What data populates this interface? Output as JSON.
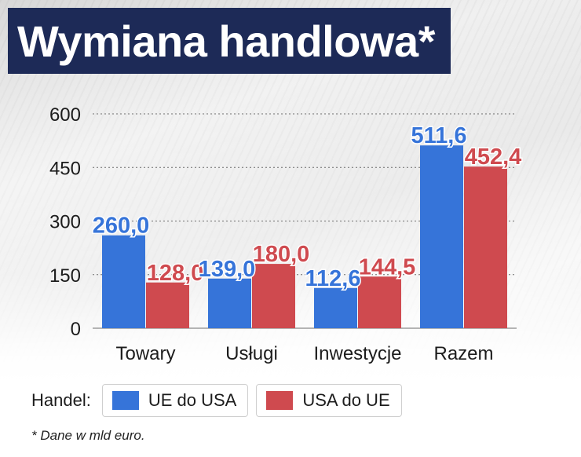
{
  "title": "Wymiana handlowa*",
  "footnote": "* Dane w mld euro.",
  "legend": {
    "title": "Handel:",
    "items": [
      {
        "label": "UE do USA",
        "color": "#3674d9"
      },
      {
        "label": "USA do UE",
        "color": "#cf4a4f"
      }
    ]
  },
  "chart_data": {
    "type": "bar",
    "categories": [
      "Towary",
      "Usługi",
      "Inwestycje",
      "Razem"
    ],
    "series": [
      {
        "name": "UE do USA",
        "color": "#3674d9",
        "values": [
          260.0,
          139.0,
          112.6,
          511.6
        ],
        "labels": [
          "260,0",
          "139,0",
          "112,6",
          "511,6"
        ]
      },
      {
        "name": "USA do UE",
        "color": "#cf4a4f",
        "values": [
          128.0,
          180.0,
          144.5,
          452.4
        ],
        "labels": [
          "128,0",
          "180,0",
          "144,5",
          "452,4"
        ]
      }
    ],
    "ylim": [
      0,
      600
    ],
    "yticks": [
      0,
      150,
      300,
      450,
      600
    ],
    "ytick_labels": [
      "0",
      "150",
      "300",
      "450",
      "600"
    ],
    "grid": true
  }
}
